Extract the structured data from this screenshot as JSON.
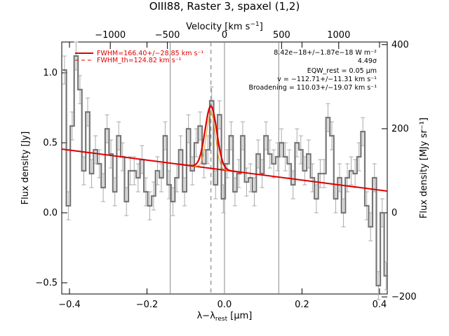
{
  "chart_data": {
    "type": "line",
    "title": "OIII88, Raster 3, spaxel (1,2)",
    "xlabel": "λ−λ_rest [μm]",
    "ylabel_left": "Flux density [Jy]",
    "ylabel_right": "Flux density [MJy sr⁻¹]",
    "xlabel_top": "Velocity [km s⁻¹]",
    "xlim": [
      -0.42,
      0.42
    ],
    "ylim": [
      -0.58,
      1.22
    ],
    "x_ticks": [
      "−0.4",
      "−0.2",
      "0.0",
      "0.2",
      "0.4"
    ],
    "x_tick_values": [
      -0.4,
      -0.2,
      0.0,
      0.2,
      0.4
    ],
    "y_ticks": [
      "−0.5",
      "0.0",
      "0.5",
      "1.0"
    ],
    "y_tick_values": [
      -0.5,
      0.0,
      0.5,
      1.0
    ],
    "top_ticks": [
      "−1000",
      "−500",
      "0",
      "500",
      "1000"
    ],
    "top_tick_values": [
      -1000,
      -500,
      0,
      500,
      1000
    ],
    "right_ticks": [
      "−200",
      "0",
      "200",
      "400"
    ],
    "right_tick_values": [
      -200,
      0,
      200,
      400
    ],
    "vertical_lines": [
      -0.14,
      0.0,
      0.14
    ],
    "line_center": -0.035,
    "legend": [
      {
        "label": "FWHM=166.40+/−28.85 km s⁻¹",
        "style": "solid",
        "color": "#e00000"
      },
      {
        "label": "FWHM_th=124.82 km s⁻¹",
        "style": "dashed",
        "color": "#e00000"
      }
    ],
    "annotations": [
      "8.42e−18+/−1.87e−18 W m⁻²",
      "4.49σ",
      "EQW_rest = 0.05 μm",
      "v = −112.71+/−11.31 km s⁻¹",
      "Broadening = 110.03+/−19.07 km s⁻¹"
    ],
    "continuum": {
      "slope": -0.357,
      "intercept": 0.305
    },
    "gaussian_fit": {
      "amplitude": 0.445,
      "center": -0.035,
      "sigma": 0.015
    },
    "gaussian_theoretical": {
      "amplitude": 0.4,
      "center": -0.035,
      "sigma": 0.0115
    },
    "x": [
      -0.413,
      -0.403,
      -0.393,
      -0.383,
      -0.373,
      -0.363,
      -0.353,
      -0.343,
      -0.333,
      -0.323,
      -0.313,
      -0.303,
      -0.293,
      -0.283,
      -0.273,
      -0.263,
      -0.253,
      -0.243,
      -0.233,
      -0.223,
      -0.213,
      -0.203,
      -0.193,
      -0.183,
      -0.173,
      -0.163,
      -0.153,
      -0.143,
      -0.133,
      -0.123,
      -0.113,
      -0.103,
      -0.093,
      -0.083,
      -0.073,
      -0.063,
      -0.053,
      -0.043,
      -0.033,
      -0.023,
      -0.013,
      -0.003,
      0.007,
      0.017,
      0.027,
      0.037,
      0.047,
      0.057,
      0.067,
      0.077,
      0.087,
      0.097,
      0.107,
      0.117,
      0.127,
      0.137,
      0.147,
      0.157,
      0.167,
      0.177,
      0.187,
      0.197,
      0.207,
      0.217,
      0.227,
      0.237,
      0.247,
      0.257,
      0.267,
      0.277,
      0.287,
      0.297,
      0.307,
      0.317,
      0.327,
      0.337,
      0.347,
      0.357,
      0.367,
      0.377,
      0.387,
      0.397,
      0.407,
      0.417
    ],
    "y": [
      1.02,
      0.05,
      0.62,
      1.12,
      0.88,
      0.3,
      0.72,
      0.28,
      0.45,
      0.35,
      0.18,
      0.6,
      0.42,
      0.15,
      0.55,
      0.4,
      0.08,
      0.3,
      0.3,
      0.25,
      0.38,
      0.15,
      0.05,
      0.12,
      0.3,
      0.25,
      0.55,
      0.2,
      0.08,
      0.25,
      0.45,
      0.15,
      0.6,
      0.3,
      0.5,
      0.62,
      0.35,
      0.45,
      0.8,
      0.2,
      0.7,
      0.1,
      0.35,
      0.55,
      0.15,
      0.28,
      0.55,
      0.22,
      0.25,
      0.15,
      0.42,
      0.28,
      0.55,
      0.42,
      0.35,
      0.4,
      0.5,
      0.4,
      0.35,
      0.2,
      0.5,
      0.45,
      0.3,
      0.42,
      0.25,
      0.1,
      0.28,
      0.28,
      0.68,
      0.55,
      0.1,
      0.25,
      0.0,
      0.25,
      0.3,
      0.28,
      0.4,
      0.58,
      0.05,
      -0.1,
      0.25,
      -0.52,
      0.0,
      -0.45
    ],
    "error": 0.1
  }
}
